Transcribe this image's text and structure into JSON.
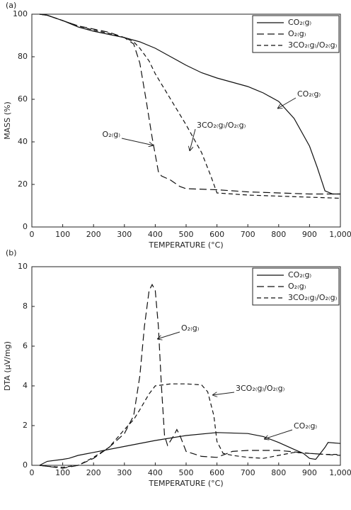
{
  "chart_data": [
    {
      "type": "line",
      "panel": "(a)",
      "xlabel": "TEMPERATURE (°C)",
      "ylabel": "MASS (%)",
      "xlim": [
        0,
        1000
      ],
      "ylim": [
        0,
        100
      ],
      "xticks": [
        0,
        100,
        200,
        300,
        400,
        500,
        600,
        700,
        800,
        900,
        {
          "value": 1000,
          "label": "1,000"
        }
      ],
      "yticks": [
        0,
        20,
        40,
        60,
        80,
        100
      ],
      "legend": "upper right",
      "series": [
        {
          "name": "CO₂₍g₎",
          "color": "#111111",
          "linestyle": "solid",
          "x": [
            25,
            50,
            100,
            150,
            200,
            250,
            300,
            350,
            400,
            450,
            500,
            550,
            600,
            650,
            700,
            750,
            800,
            850,
            900,
            925,
            950,
            975,
            1000
          ],
          "values": [
            100,
            99.5,
            97,
            94,
            92,
            90.5,
            89,
            87,
            84,
            80,
            76,
            72.5,
            70,
            68,
            66,
            63,
            59,
            51,
            38,
            28,
            17,
            15.5,
            15.5
          ]
        },
        {
          "name": "O₂₍g₎",
          "color": "#111111",
          "linestyle": "dashed",
          "x": [
            25,
            50,
            100,
            150,
            200,
            250,
            300,
            330,
            350,
            370,
            390,
            410,
            420,
            450,
            480,
            500,
            600,
            700,
            800,
            900,
            1000
          ],
          "values": [
            100,
            99.5,
            97,
            94.5,
            93,
            91.5,
            89,
            86,
            77,
            60,
            42,
            26,
            24,
            22,
            19,
            18,
            17.5,
            16.5,
            16,
            15.5,
            15.5
          ]
        },
        {
          "name": "3CO₂₍g₎/O₂₍g₎",
          "color": "#111111",
          "linestyle": "dashed",
          "x": [
            25,
            50,
            100,
            150,
            200,
            250,
            300,
            330,
            350,
            380,
            400,
            450,
            500,
            550,
            580,
            600,
            700,
            800,
            900,
            1000
          ],
          "values": [
            100,
            99.5,
            97,
            94.5,
            92.5,
            91,
            89,
            87,
            84,
            78,
            72,
            60,
            48,
            35,
            24,
            16,
            15,
            14.5,
            14,
            13.5
          ]
        }
      ],
      "annotations": [
        "CO₂₍g₎",
        "O₂₍g₎",
        "3CO₂₍g₎/O₂₍g₎"
      ]
    },
    {
      "type": "line",
      "panel": "(b)",
      "xlabel": "TEMPERATURE (°C)",
      "ylabel": "DTA (μV/mg)",
      "xlim": [
        0,
        1000
      ],
      "ylim": [
        0,
        10
      ],
      "xticks": [
        0,
        100,
        200,
        300,
        400,
        500,
        600,
        700,
        800,
        900,
        {
          "value": 1000,
          "label": "1,000"
        }
      ],
      "yticks": [
        0,
        2,
        4,
        6,
        8,
        10
      ],
      "legend": "upper right",
      "series": [
        {
          "name": "CO₂₍g₎",
          "color": "#111111",
          "linestyle": "solid",
          "x": [
            25,
            50,
            100,
            120,
            150,
            200,
            300,
            400,
            500,
            600,
            700,
            750,
            800,
            850,
            880,
            900,
            920,
            950,
            960,
            1000
          ],
          "values": [
            0,
            0.2,
            0.3,
            0.35,
            0.5,
            0.65,
            0.95,
            1.25,
            1.5,
            1.65,
            1.6,
            1.45,
            1.15,
            0.8,
            0.6,
            0.35,
            0.3,
            0.9,
            1.15,
            1.1
          ]
        },
        {
          "name": "O₂₍g₎",
          "color": "#111111",
          "linestyle": "dashed",
          "x": [
            25,
            50,
            100,
            150,
            200,
            250,
            300,
            330,
            350,
            365,
            380,
            390,
            400,
            410,
            420,
            430,
            440,
            460,
            470,
            480,
            500,
            550,
            600,
            650,
            700,
            800,
            900,
            1000
          ],
          "values": [
            0,
            -0.05,
            -0.15,
            0,
            0.35,
            0.9,
            1.6,
            2.5,
            4.5,
            7,
            8.8,
            9.1,
            8.8,
            7,
            4,
            1.5,
            1,
            1.5,
            1.8,
            1.5,
            0.7,
            0.45,
            0.4,
            0.7,
            0.75,
            0.75,
            0.6,
            0.5
          ]
        },
        {
          "name": "3CO₂₍g₎/O₂₍g₎",
          "color": "#111111",
          "linestyle": "dashed",
          "x": [
            25,
            50,
            100,
            150,
            200,
            250,
            300,
            330,
            350,
            380,
            400,
            450,
            500,
            550,
            570,
            590,
            600,
            620,
            650,
            700,
            750,
            800,
            850,
            900,
            950,
            1000
          ],
          "values": [
            0,
            -0.05,
            -0.1,
            0,
            0.4,
            0.9,
            1.8,
            2.3,
            2.8,
            3.6,
            4,
            4.1,
            4.1,
            4.05,
            3.7,
            2.5,
            1.2,
            0.6,
            0.5,
            0.4,
            0.35,
            0.5,
            0.65,
            0.6,
            0.55,
            0.55
          ]
        }
      ],
      "annotations": [
        "O₂₍g₎",
        "3CO₂₍g₎/O₂₍g₎",
        "CO₂₍g₎"
      ]
    }
  ]
}
